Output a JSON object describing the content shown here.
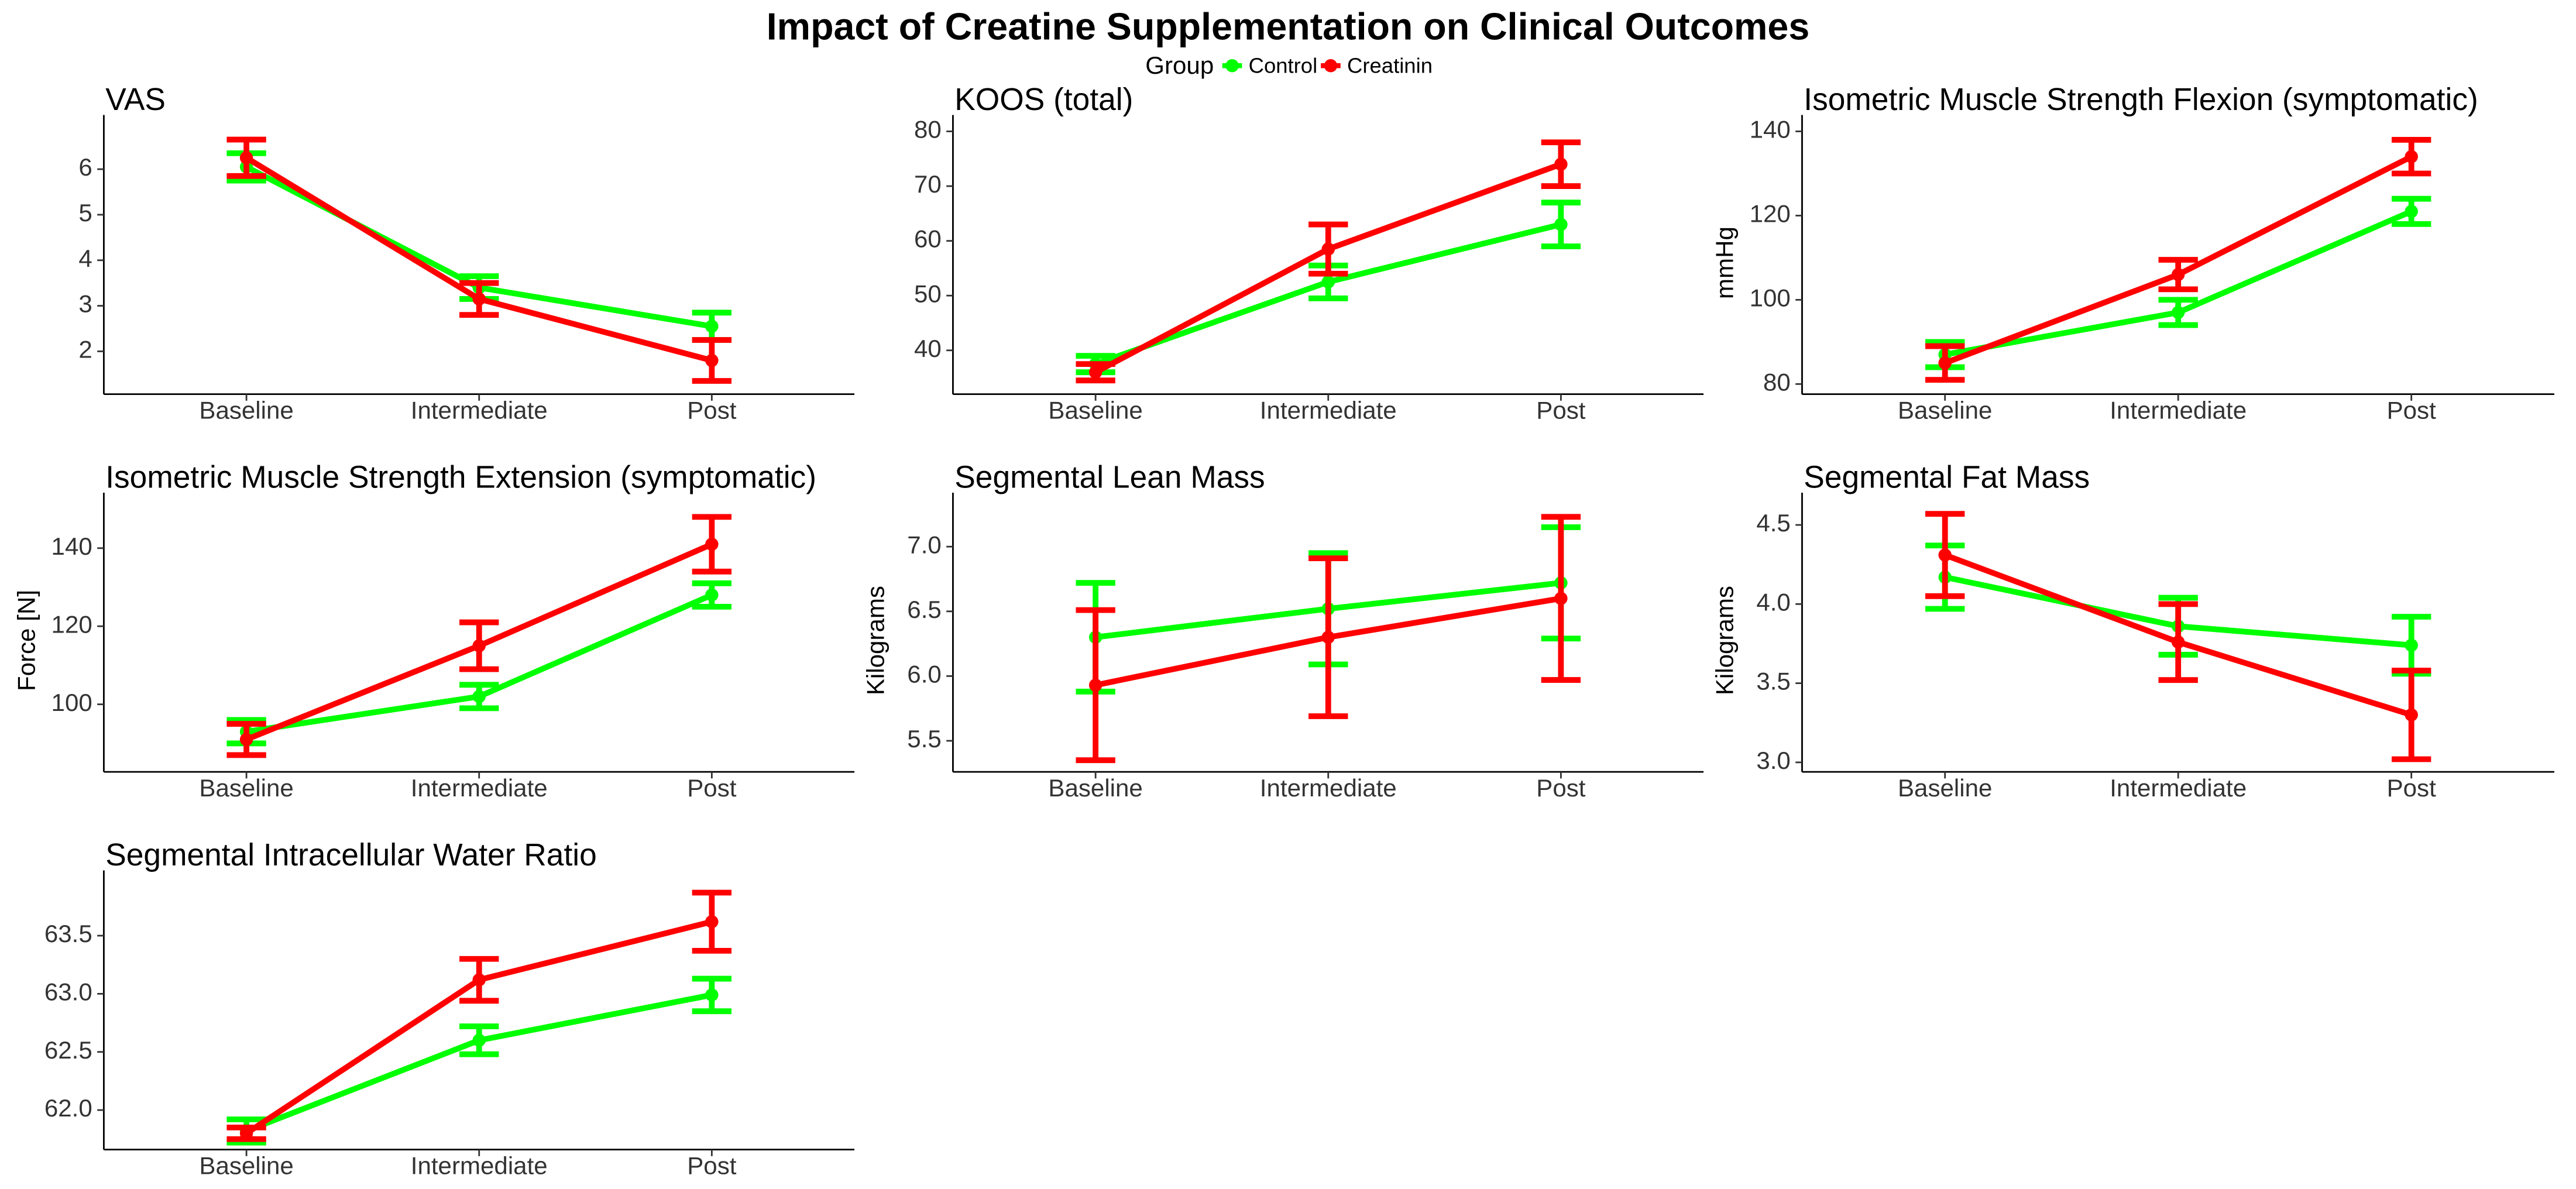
{
  "title": "Impact of Creatine Supplementation on Clinical Outcomes",
  "legend": {
    "title": "Group"
  },
  "chart_data": [
    {
      "type": "line",
      "title": "VAS",
      "categories": [
        "Baseline",
        "Intermediate",
        "Post"
      ],
      "ylim": [
        1.06,
        6.83
      ],
      "yticks": [
        2,
        3,
        4,
        5,
        6
      ],
      "series": [
        {
          "name": "Control",
          "color": "#00ff00",
          "values": [
            6.05,
            3.4,
            2.55
          ],
          "errors": [
            0.3,
            0.25,
            0.3
          ]
        },
        {
          "name": "Creatinin",
          "color": "#ff0000",
          "values": [
            6.25,
            3.15,
            1.8
          ],
          "errors": [
            0.4,
            0.35,
            0.45
          ]
        }
      ]
    },
    {
      "type": "line",
      "title": "KOOS (total)",
      "categories": [
        "Baseline",
        "Intermediate",
        "Post"
      ],
      "ylim": [
        32,
        80
      ],
      "yticks": [
        40,
        50,
        60,
        70,
        80
      ],
      "series": [
        {
          "name": "Control",
          "color": "#00ff00",
          "values": [
            37.5,
            52.5,
            63
          ],
          "errors": [
            1.5,
            3,
            4
          ]
        },
        {
          "name": "Creatinin",
          "color": "#ff0000",
          "values": [
            36,
            58.5,
            74
          ],
          "errors": [
            1.5,
            4.5,
            4
          ]
        }
      ]
    },
    {
      "type": "line",
      "title": "Isometric Muscle Strength Flexion (symptomatic)",
      "ylabel": "mmHg",
      "categories": [
        "Baseline",
        "Intermediate",
        "Post"
      ],
      "ylim": [
        77.6,
        140
      ],
      "yticks": [
        80,
        100,
        120,
        140
      ],
      "series": [
        {
          "name": "Control",
          "color": "#00ff00",
          "values": [
            87,
            97,
            121
          ],
          "errors": [
            3,
            3,
            3
          ]
        },
        {
          "name": "Creatinin",
          "color": "#ff0000",
          "values": [
            85,
            106,
            134
          ],
          "errors": [
            4,
            3.5,
            4
          ]
        }
      ]
    },
    {
      "type": "line",
      "title": "Isometric Muscle Strength Extension (symptomatic)",
      "ylabel": "Force [N]",
      "categories": [
        "Baseline",
        "Intermediate",
        "Post"
      ],
      "ylim": [
        82.7,
        150
      ],
      "yticks": [
        100,
        120,
        140
      ],
      "series": [
        {
          "name": "Control",
          "color": "#00ff00",
          "values": [
            93,
            102,
            128
          ],
          "errors": [
            3,
            3,
            3
          ]
        },
        {
          "name": "Creatinin",
          "color": "#ff0000",
          "values": [
            91,
            115,
            141
          ],
          "errors": [
            4,
            6,
            7
          ]
        }
      ]
    },
    {
      "type": "line",
      "title": "Segmental Lean Mass",
      "ylabel": "Kilograms",
      "categories": [
        "Baseline",
        "Intermediate",
        "Post"
      ],
      "ylim": [
        5.26,
        7.29
      ],
      "yticks": [
        {
          "value": 5.5,
          "label": "5.5"
        },
        {
          "value": 6,
          "label": "6.0"
        },
        {
          "value": 6.5,
          "label": "6.5"
        },
        {
          "value": 7,
          "label": "7.0"
        }
      ],
      "series": [
        {
          "name": "Control",
          "color": "#00ff00",
          "values": [
            6.3,
            6.52,
            6.72
          ],
          "errors": [
            0.42,
            0.43,
            0.43
          ]
        },
        {
          "name": "Creatinin",
          "color": "#ff0000",
          "values": [
            5.93,
            6.3,
            6.6
          ],
          "errors": [
            0.58,
            0.61,
            0.63
          ]
        }
      ]
    },
    {
      "type": "line",
      "title": "Segmental Fat Mass",
      "ylabel": "Kilograms",
      "categories": [
        "Baseline",
        "Intermediate",
        "Post"
      ],
      "ylim": [
        2.94,
        4.6
      ],
      "yticks": [
        {
          "value": 3,
          "label": "3.0"
        },
        {
          "value": 3.5,
          "label": "3.5"
        },
        {
          "value": 4,
          "label": "4.0"
        },
        {
          "value": 4.5,
          "label": "4.5"
        }
      ],
      "series": [
        {
          "name": "Control",
          "color": "#00ff00",
          "values": [
            4.17,
            3.86,
            3.74
          ],
          "errors": [
            0.2,
            0.18,
            0.18
          ]
        },
        {
          "name": "Creatinin",
          "color": "#ff0000",
          "values": [
            4.31,
            3.76,
            3.3
          ],
          "errors": [
            0.26,
            0.24,
            0.28
          ]
        }
      ]
    },
    {
      "type": "line",
      "title": "Segmental Intracellular Water Ratio",
      "categories": [
        "Baseline",
        "Intermediate",
        "Post"
      ],
      "ylim": [
        61.66,
        63.92
      ],
      "yticks": [
        {
          "value": 62,
          "label": "62.0"
        },
        62.5,
        {
          "value": 63,
          "label": "63.0"
        },
        63.5
      ],
      "series": [
        {
          "name": "Control",
          "color": "#00ff00",
          "values": [
            61.82,
            62.6,
            62.99
          ],
          "errors": [
            0.1,
            0.12,
            0.14
          ]
        },
        {
          "name": "Creatinin",
          "color": "#ff0000",
          "values": [
            61.8,
            63.12,
            63.62
          ],
          "errors": [
            0.05,
            0.18,
            0.25
          ]
        }
      ]
    }
  ]
}
